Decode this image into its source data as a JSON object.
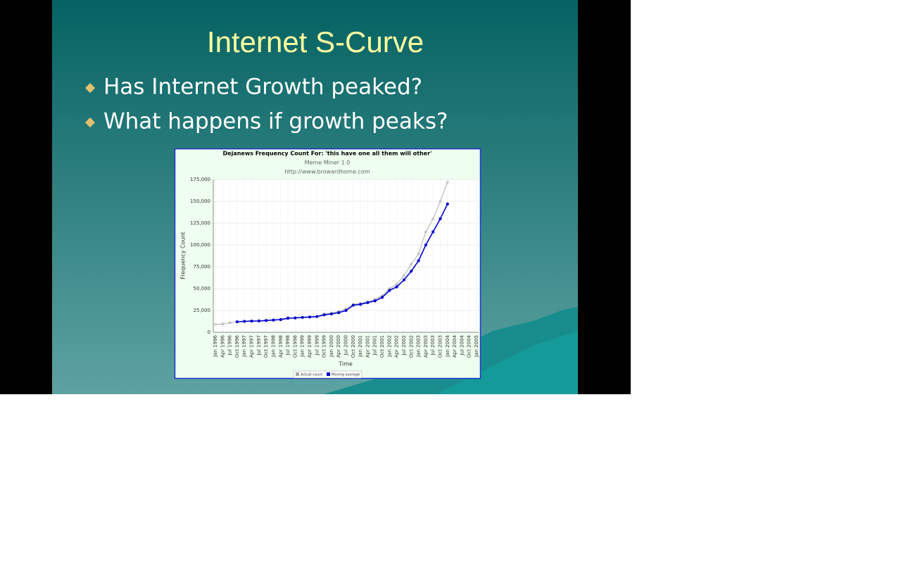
{
  "slide": {
    "title": "Internet S-Curve",
    "bullets": [
      "Has Internet Growth peaked?",
      "What happens if growth peaks?"
    ]
  },
  "chart_data": {
    "type": "line",
    "title": "Dejanews Frequency Count For: 'this have one all them will other'",
    "subtitle": "Meme Miner 1.0",
    "source": "http://www.browardhome.com",
    "x_label": "Time",
    "y_label": "Frequency Count",
    "categories": [
      "Jan 1996",
      "Apr 1996",
      "Jul 1996",
      "Oct 1996",
      "Jan 1997",
      "Apr 1997",
      "Jul 1997",
      "Oct 1997",
      "Jan 1998",
      "Apr 1998",
      "Jul 1998",
      "Oct 1998",
      "Jan 1999",
      "Apr 1999",
      "Jul 1999",
      "Oct 1999",
      "Jan 2000",
      "Apr 2000",
      "Jul 2000",
      "Oct 2000",
      "Jan 2001",
      "Apr 2001",
      "Jul 2001",
      "Oct 2001",
      "Jan 2002",
      "Apr 2002",
      "Jul 2002",
      "Oct 2002",
      "Jan 2003",
      "Apr 2003",
      "Jul 2003",
      "Oct 2003",
      "Jan 2004",
      "Apr 2004",
      "Jul 2004",
      "Oct 2004",
      "Jan 2005"
    ],
    "series": [
      {
        "name": "Actual count",
        "color": "#a8a8a8",
        "values": [
          9000,
          9500,
          11000,
          12000,
          12500,
          13000,
          13000,
          13500,
          14000,
          15000,
          17000,
          16000,
          17000,
          17500,
          18000,
          21000,
          22000,
          24000,
          27000,
          32000,
          33000,
          35000,
          38000,
          42000,
          50000,
          55000,
          65000,
          78000,
          90000,
          115000,
          130000,
          150000,
          172000,
          null,
          null,
          null,
          null
        ]
      },
      {
        "name": "Moving average",
        "color": "#0000cc",
        "values": [
          null,
          null,
          null,
          12000,
          12500,
          12800,
          13000,
          13500,
          14000,
          14500,
          16000,
          16500,
          17000,
          17500,
          18000,
          20000,
          21000,
          22500,
          25000,
          31000,
          32000,
          34000,
          36000,
          40000,
          48000,
          52000,
          60000,
          70000,
          82000,
          100000,
          115000,
          130000,
          147000,
          null,
          null,
          null,
          null
        ]
      }
    ],
    "ylim": [
      0,
      175000
    ],
    "yticks": [
      0,
      {
        "value": 25000,
        "label": "25,000"
      },
      {
        "value": 50000,
        "label": "50,000"
      },
      {
        "value": 75000,
        "label": "75,000"
      },
      {
        "value": 100000,
        "label": "100,000"
      },
      {
        "value": 125000,
        "label": "125,000"
      },
      {
        "value": 150000,
        "label": "150,000"
      },
      {
        "value": 175000,
        "label": "175,000"
      }
    ],
    "grid": true,
    "legend": "bottom"
  }
}
